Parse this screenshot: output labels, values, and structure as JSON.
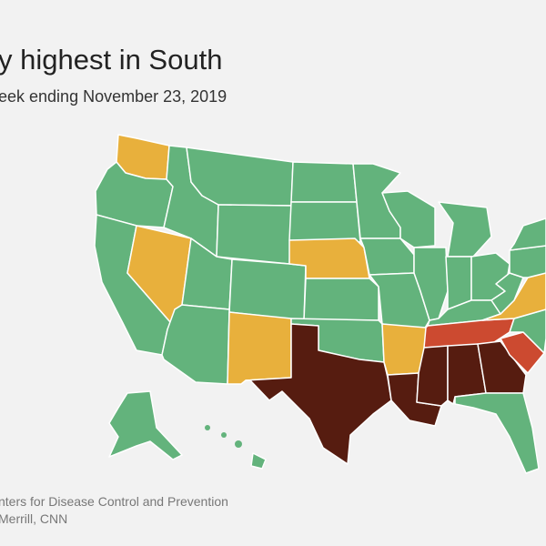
{
  "header": {
    "title": "y highest in South",
    "subtitle": "eek ending November 23, 2019"
  },
  "footer": {
    "source": "nters for Disease Control and Prevention",
    "credit": "Merrill, CNN"
  }
}
